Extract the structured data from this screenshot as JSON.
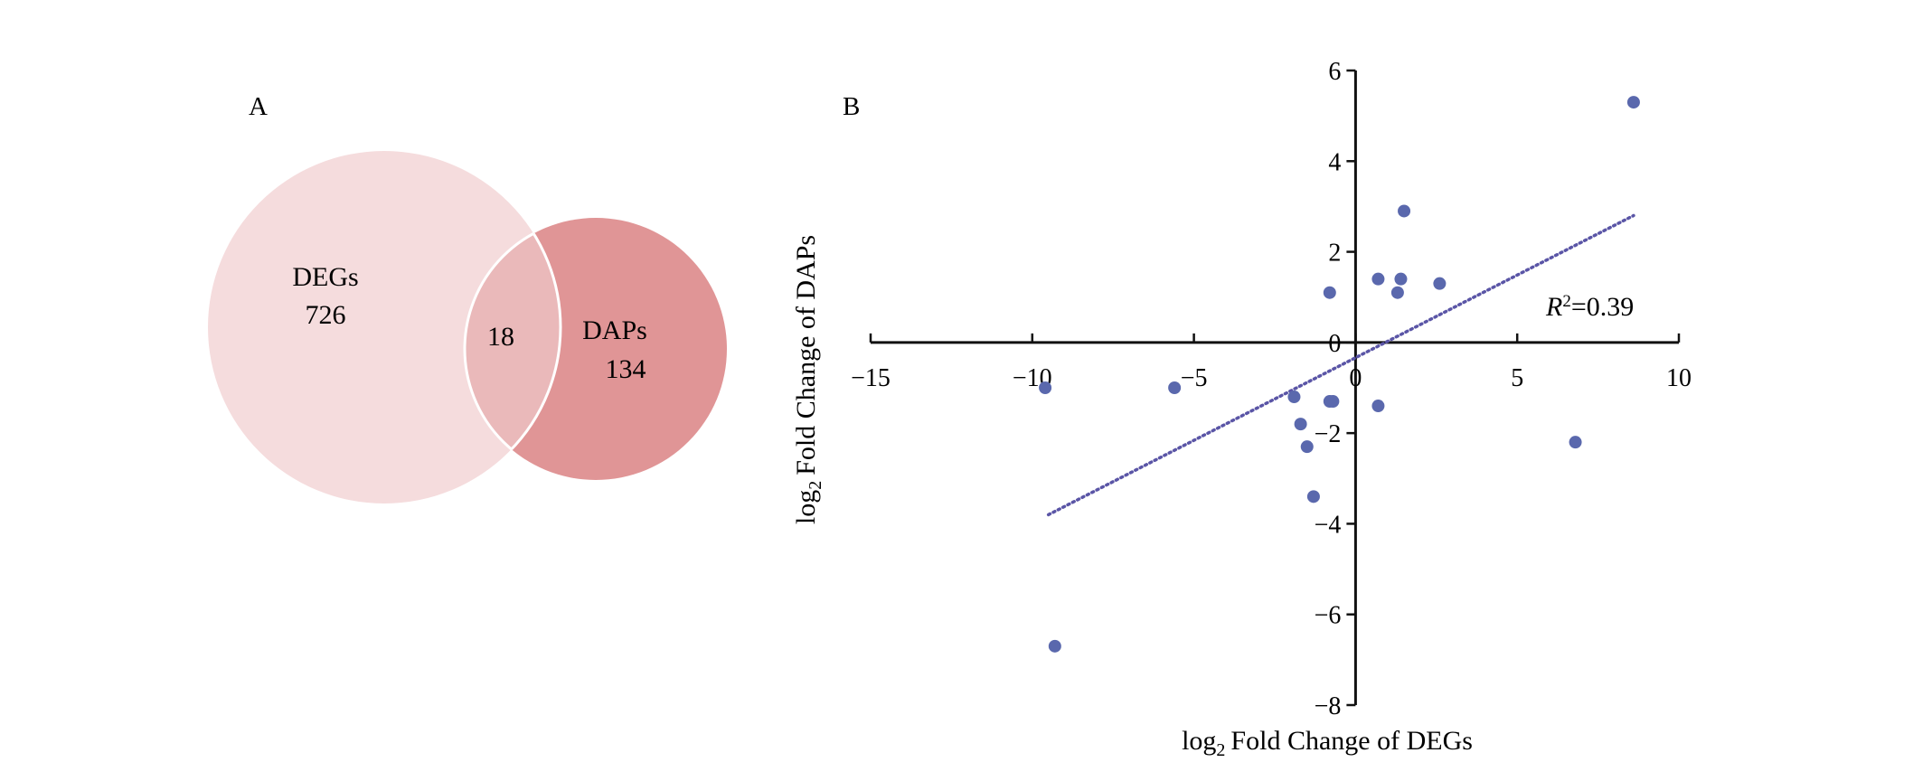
{
  "colors": {
    "degs_fill": "#f5dcdd",
    "daps_fill": "#e09596",
    "overlap_fill": "#eab9ba",
    "point": "#5a68ad",
    "trend": "#5a55a6",
    "axis": "#111111"
  },
  "panels": {
    "a": {
      "label": "A"
    },
    "b": {
      "label": "B"
    }
  },
  "chart_data": [
    {
      "type": "venn",
      "sets": [
        {
          "name": "DEGs",
          "unique_count": "726"
        },
        {
          "name": "DAPs",
          "unique_count": "134"
        }
      ],
      "intersection": "18"
    },
    {
      "type": "scatter",
      "xlabel": "Fold Change of DEGs",
      "ylabel": "Fold Change of DAPs",
      "axis_prefix": "log",
      "axis_subscript": "2",
      "xlim": [
        -15,
        10
      ],
      "ylim": [
        -8,
        6
      ],
      "x_ticks": [
        -15,
        -10,
        -5,
        0,
        5,
        10
      ],
      "y_ticks": [
        -8,
        -6,
        -4,
        -2,
        0,
        2,
        4,
        6
      ],
      "x_tick_labels": [
        "−15",
        "−10",
        "−5",
        "0",
        "5",
        "10"
      ],
      "y_tick_labels": [
        "−8",
        "−6",
        "−4",
        "−2",
        "0",
        "2",
        "4",
        "6"
      ],
      "axes_cross_at_origin": true,
      "grid": false,
      "points": [
        {
          "x": 8.6,
          "y": 5.3
        },
        {
          "x": 1.5,
          "y": 2.9
        },
        {
          "x": 0.7,
          "y": 1.4
        },
        {
          "x": 1.4,
          "y": 1.4
        },
        {
          "x": 1.3,
          "y": 1.1
        },
        {
          "x": 2.6,
          "y": 1.3
        },
        {
          "x": -0.8,
          "y": 1.1
        },
        {
          "x": -9.6,
          "y": -1.0
        },
        {
          "x": -5.6,
          "y": -1.0
        },
        {
          "x": -1.9,
          "y": -1.2
        },
        {
          "x": -0.8,
          "y": -1.3
        },
        {
          "x": -0.7,
          "y": -1.3
        },
        {
          "x": 0.7,
          "y": -1.4
        },
        {
          "x": -1.7,
          "y": -1.8
        },
        {
          "x": -1.5,
          "y": -2.3
        },
        {
          "x": -1.3,
          "y": -3.4
        },
        {
          "x": 6.8,
          "y": -2.2
        },
        {
          "x": -9.3,
          "y": -6.7
        }
      ],
      "trendline": {
        "style": "dotted",
        "x": [
          -9.5,
          8.6
        ],
        "y": [
          -3.8,
          2.8
        ]
      },
      "annotation": {
        "symbol": "R",
        "power": "2",
        "text": "=0.39"
      }
    }
  ]
}
